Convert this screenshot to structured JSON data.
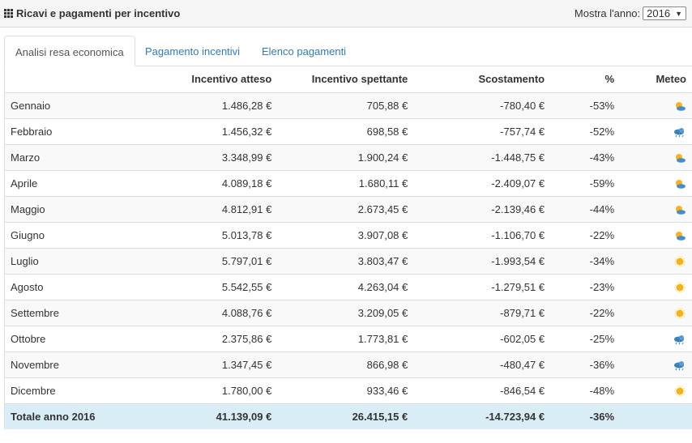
{
  "header": {
    "title": "Ricavi e pagamenti per incentivo",
    "year_label": "Mostra l'anno:",
    "year_value": "2016"
  },
  "tabs": [
    {
      "label": "Analisi resa economica",
      "active": true
    },
    {
      "label": "Pagamento incentivi",
      "active": false
    },
    {
      "label": "Elenco pagamenti",
      "active": false
    }
  ],
  "table": {
    "columns": [
      "",
      "Incentivo atteso",
      "Incentivo spettante",
      "Scostamento",
      "%",
      "Meteo"
    ],
    "rows": [
      {
        "month": "Gennaio",
        "atteso": "1.486,28 €",
        "spettante": "705,88 €",
        "scostamento": "-780,40 €",
        "pct": "-53%",
        "meteo": "sun-cloud-icon"
      },
      {
        "month": "Febbraio",
        "atteso": "1.456,32 €",
        "spettante": "698,58 €",
        "scostamento": "-757,74 €",
        "pct": "-52%",
        "meteo": "rain-cloud-icon"
      },
      {
        "month": "Marzo",
        "atteso": "3.348,99 €",
        "spettante": "1.900,24 €",
        "scostamento": "-1.448,75 €",
        "pct": "-43%",
        "meteo": "sun-cloud-icon"
      },
      {
        "month": "Aprile",
        "atteso": "4.089,18 €",
        "spettante": "1.680,11 €",
        "scostamento": "-2.409,07 €",
        "pct": "-59%",
        "meteo": "sun-cloud-icon"
      },
      {
        "month": "Maggio",
        "atteso": "4.812,91 €",
        "spettante": "2.673,45 €",
        "scostamento": "-2.139,46 €",
        "pct": "-44%",
        "meteo": "sun-cloud-icon"
      },
      {
        "month": "Giugno",
        "atteso": "5.013,78 €",
        "spettante": "3.907,08 €",
        "scostamento": "-1.106,70 €",
        "pct": "-22%",
        "meteo": "sun-cloud-icon"
      },
      {
        "month": "Luglio",
        "atteso": "5.797,01 €",
        "spettante": "3.803,47 €",
        "scostamento": "-1.993,54 €",
        "pct": "-34%",
        "meteo": "sun-icon"
      },
      {
        "month": "Agosto",
        "atteso": "5.542,55 €",
        "spettante": "4.263,04 €",
        "scostamento": "-1.279,51 €",
        "pct": "-23%",
        "meteo": "sun-icon"
      },
      {
        "month": "Settembre",
        "atteso": "4.088,76 €",
        "spettante": "3.209,05 €",
        "scostamento": "-879,71 €",
        "pct": "-22%",
        "meteo": "sun-icon"
      },
      {
        "month": "Ottobre",
        "atteso": "2.375,86 €",
        "spettante": "1.773,81 €",
        "scostamento": "-602,05 €",
        "pct": "-25%",
        "meteo": "rain-cloud-icon"
      },
      {
        "month": "Novembre",
        "atteso": "1.347,45 €",
        "spettante": "866,98 €",
        "scostamento": "-480,47 €",
        "pct": "-36%",
        "meteo": "rain-cloud-icon"
      },
      {
        "month": "Dicembre",
        "atteso": "1.780,00 €",
        "spettante": "933,46 €",
        "scostamento": "-846,54 €",
        "pct": "-48%",
        "meteo": "sun-icon"
      }
    ],
    "total": {
      "label": "Totale anno 2016",
      "atteso": "41.139,09 €",
      "spettante": "26.415,15 €",
      "scostamento": "-14.723,94 €",
      "pct": "-36%"
    }
  },
  "colors": {
    "link": "#337ab7",
    "total_bg": "#d9edf7",
    "sun": "#f7b21b",
    "cloud": "#3f7fb8"
  }
}
